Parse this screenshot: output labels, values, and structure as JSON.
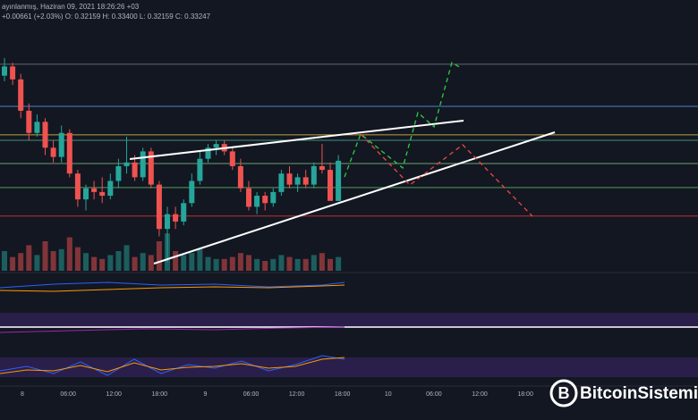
{
  "chart_data": {
    "type": "candlestick",
    "header": [
      "ayınlanmış, Haziran 09, 2021 18:26:26 +03",
      "+0.00661 (+2.03%) O: 0.32159 H: 0.33400 L: 0.32159 C: 0.33247"
    ],
    "watermark": "BitcoinSistemi",
    "xtick_labels": [
      "8",
      "06:00",
      "12:00",
      "18:00",
      "9",
      "06:00",
      "12:00",
      "18:00",
      "10",
      "06:00",
      "12:00",
      "18:00"
    ],
    "ylim": [
      0.3034,
      0.376
    ],
    "open": [
      0.3555,
      0.358,
      0.3545,
      0.346,
      0.34,
      0.343,
      0.336,
      0.3335,
      0.34,
      0.329,
      0.322,
      0.325,
      0.324,
      0.323,
      0.327,
      0.331,
      0.332,
      0.328,
      0.335,
      0.326,
      0.314,
      0.318,
      0.316,
      0.321,
      0.327,
      0.333,
      0.336,
      0.337,
      0.335,
      0.331,
      0.325,
      0.32,
      0.323,
      0.321,
      0.324,
      0.329,
      0.326,
      0.328,
      0.326,
      0.331,
      0.33,
      0.32159
    ],
    "high": [
      0.3603,
      0.359,
      0.356,
      0.348,
      0.345,
      0.344,
      0.338,
      0.342,
      0.341,
      0.33,
      0.326,
      0.327,
      0.328,
      0.329,
      0.333,
      0.339,
      0.334,
      0.336,
      0.336,
      0.327,
      0.32,
      0.32,
      0.322,
      0.329,
      0.335,
      0.337,
      0.338,
      0.338,
      0.336,
      0.333,
      0.327,
      0.324,
      0.324,
      0.325,
      0.33,
      0.331,
      0.329,
      0.33,
      0.332,
      0.337,
      0.332,
      0.334
    ],
    "low": [
      0.354,
      0.353,
      0.344,
      0.338,
      0.339,
      0.334,
      0.332,
      0.332,
      0.328,
      0.32,
      0.319,
      0.322,
      0.321,
      0.322,
      0.325,
      0.329,
      0.327,
      0.327,
      0.325,
      0.312,
      0.305,
      0.314,
      0.315,
      0.32,
      0.326,
      0.332,
      0.334,
      0.334,
      0.33,
      0.324,
      0.319,
      0.318,
      0.319,
      0.32,
      0.323,
      0.325,
      0.324,
      0.325,
      0.325,
      0.329,
      0.3216,
      0.32159
    ],
    "close": [
      0.358,
      0.3545,
      0.346,
      0.34,
      0.343,
      0.336,
      0.3335,
      0.34,
      0.329,
      0.322,
      0.325,
      0.324,
      0.323,
      0.327,
      0.331,
      0.332,
      0.328,
      0.335,
      0.326,
      0.314,
      0.318,
      0.316,
      0.321,
      0.327,
      0.333,
      0.336,
      0.337,
      0.335,
      0.331,
      0.325,
      0.32,
      0.323,
      0.321,
      0.324,
      0.329,
      0.326,
      0.328,
      0.326,
      0.331,
      0.33,
      0.3216,
      0.33247
    ],
    "volume": [
      20,
      14,
      18,
      26,
      16,
      30,
      20,
      22,
      34,
      24,
      18,
      14,
      12,
      16,
      20,
      26,
      14,
      18,
      16,
      30,
      38,
      20,
      16,
      18,
      22,
      14,
      12,
      12,
      14,
      18,
      16,
      12,
      10,
      12,
      16,
      14,
      12,
      12,
      16,
      18,
      12,
      14
    ],
    "volume_lim": [
      0,
      100
    ],
    "up_color": "#26a69a",
    "down_color": "#ef5350",
    "hlines": [
      {
        "value": 0.3586,
        "color": "#787b86"
      },
      {
        "value": 0.3472,
        "color": "#5b9cf6"
      },
      {
        "value": 0.3395,
        "color": "#e8c547"
      },
      {
        "value": 0.338,
        "color": "#4caf8f"
      },
      {
        "value": 0.3317,
        "color": "#81c784"
      },
      {
        "value": 0.3252,
        "color": "#66bb6a"
      },
      {
        "value": 0.3175,
        "color": "#e53935"
      }
    ]
  }
}
